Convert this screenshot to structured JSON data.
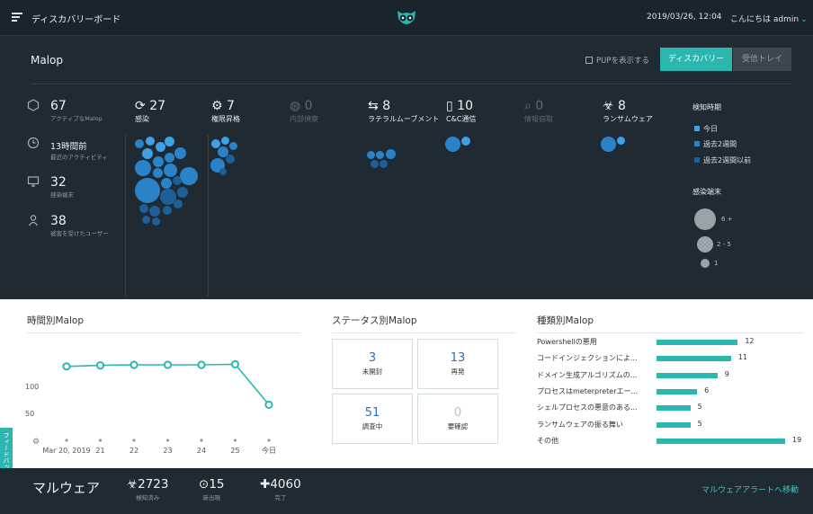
{
  "header": {
    "title": "ディスカバリーボード",
    "datetime": "2019/03/26, 12:04",
    "greeting": "こんにちは admin",
    "menu_icon": "hamburger-icon",
    "logo_icon": "owl-logo-icon"
  },
  "malop": {
    "title": "Malop",
    "pup_label": "PUPを表示する",
    "discovery_button": "ディスカバリー",
    "inbox_button": "受信トレイ"
  },
  "left_stats": [
    {
      "value": "67",
      "label": "アクティブなMalop",
      "icon": "hexagon-icon"
    },
    {
      "value": "13時間前",
      "label": "最近のアクティビティ",
      "icon": "clock-icon"
    },
    {
      "value": "32",
      "label": "感染端末",
      "icon": "monitor-icon"
    },
    {
      "value": "38",
      "label": "被害を受けたユーザー",
      "icon": "user-icon"
    }
  ],
  "categories": [
    {
      "value": "27",
      "label": "感染",
      "icon": "infection-icon",
      "dim": false
    },
    {
      "value": "7",
      "label": "権限昇格",
      "icon": "privilege-icon",
      "dim": false
    },
    {
      "value": "0",
      "label": "内部偵察",
      "icon": "recon-icon",
      "dim": true
    },
    {
      "value": "8",
      "label": "ラテラルムーブメント",
      "icon": "lateral-icon",
      "dim": false
    },
    {
      "value": "10",
      "label": "C&C通信",
      "icon": "cnc-icon",
      "dim": false
    },
    {
      "value": "0",
      "label": "情報窃取",
      "icon": "theft-icon",
      "dim": true
    },
    {
      "value": "8",
      "label": "ランサムウェア",
      "icon": "ransomware-icon",
      "dim": false
    }
  ],
  "detection_time": {
    "title": "検知時期",
    "items": [
      {
        "label": "今日",
        "color": "#3fa0e6"
      },
      {
        "label": "過去2週間",
        "color": "#2a83c9"
      },
      {
        "label": "過去2週間以前",
        "color": "#1e5f97"
      }
    ]
  },
  "infected_endpoints": {
    "title": "感染端末",
    "items": [
      "6 +",
      "2 - 5",
      "1"
    ]
  },
  "time_chart": {
    "title": "時間別Malop",
    "chart_data": {
      "type": "line",
      "categories": [
        "Mar 20, 2019",
        "21",
        "22",
        "23",
        "24",
        "25",
        "今日"
      ],
      "values": [
        137,
        139,
        140,
        140,
        140,
        141,
        66
      ],
      "y_ticks": [
        "100",
        "50"
      ],
      "ylim": [
        0,
        150
      ],
      "color": "#2bb6b0"
    }
  },
  "status": {
    "title": "ステータス別Malop",
    "boxes": [
      {
        "value": "3",
        "label": "未開封",
        "muted": false
      },
      {
        "value": "13",
        "label": "再発",
        "muted": false
      },
      {
        "value": "51",
        "label": "調査中",
        "muted": false
      },
      {
        "value": "0",
        "label": "要確認",
        "muted": true
      }
    ]
  },
  "type_chart": {
    "title": "種類別Malop",
    "chart_data": {
      "type": "bar",
      "categories": [
        "Powershellの悪用",
        "コードインジェクションによ...",
        "ドメイン生成アルゴリズムの...",
        "プロセスはmeterpreterエー...",
        "シェルプロセスの悪意のある...",
        "ランサムウェアの振る舞い",
        "その他"
      ],
      "values": [
        12,
        11,
        9,
        6,
        5,
        5,
        19
      ],
      "color": "#2bb6b0"
    }
  },
  "feedback": "フィードバック",
  "malware": {
    "title": "マルウェア",
    "stats": [
      {
        "value": "2723",
        "label": "検知済み",
        "icon": "biohazard-icon"
      },
      {
        "value": "15",
        "label": "新出現",
        "icon": "alert-circle-icon"
      },
      {
        "value": "4060",
        "label": "完了",
        "icon": "plus-box-icon"
      }
    ],
    "link": "マルウェアアラートへ移動"
  }
}
